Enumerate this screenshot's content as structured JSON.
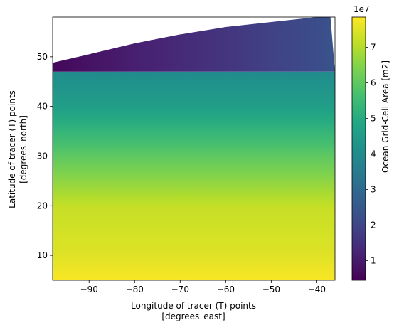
{
  "chart_data": {
    "type": "heatmap",
    "xlabel_line1": "Longitude of tracer (T) points",
    "xlabel_line2": "[degrees_east]",
    "ylabel_line1": "Latitude of tracer (T) points",
    "ylabel_line2": "[degrees_north]",
    "x_range": [
      -98,
      -36
    ],
    "y_range": [
      5,
      58
    ],
    "x_ticks": [
      -90,
      -80,
      -70,
      -60,
      -50,
      -40
    ],
    "x_tick_labels": [
      "−90",
      "−80",
      "−70",
      "−60",
      "−50",
      "−40"
    ],
    "y_ticks": [
      10,
      20,
      30,
      40,
      50
    ],
    "y_tick_labels": [
      "10",
      "20",
      "30",
      "40",
      "50"
    ],
    "colorbar": {
      "label": "Ocean Grid-Cell Area [m2]",
      "scale_label": "1e7",
      "range": [
        0.45,
        7.85
      ],
      "ticks": [
        1,
        2,
        3,
        4,
        5,
        6,
        7
      ],
      "tick_labels": [
        "1",
        "2",
        "3",
        "4",
        "5",
        "6",
        "7"
      ],
      "colormap": "viridis"
    },
    "regions": [
      {
        "name": "south",
        "lat_from": 5,
        "lat_to": 47,
        "lon_from": -98,
        "lon_to": -36,
        "value_at_lat": [
          [
            5,
            7.8
          ],
          [
            10,
            7.5
          ],
          [
            20,
            7.2
          ],
          [
            30,
            6.0
          ],
          [
            40,
            4.6
          ],
          [
            47,
            4.0
          ]
        ]
      },
      {
        "name": "north",
        "lat_from": 47,
        "lon_from": -98,
        "lon_to": -36,
        "north_edge": [
          [
            -98,
            48.8
          ],
          [
            -90,
            50.5
          ],
          [
            -80,
            52.7
          ],
          [
            -70,
            54.5
          ],
          [
            -60,
            56.0
          ],
          [
            -50,
            57.0
          ],
          [
            -40,
            58.0
          ],
          [
            -37,
            58.0
          ]
        ],
        "value_at_lon": [
          [
            -98,
            0.6
          ],
          [
            -80,
            1.1
          ],
          [
            -60,
            1.6
          ],
          [
            -40,
            2.2
          ],
          [
            -36,
            2.4
          ]
        ]
      }
    ]
  }
}
